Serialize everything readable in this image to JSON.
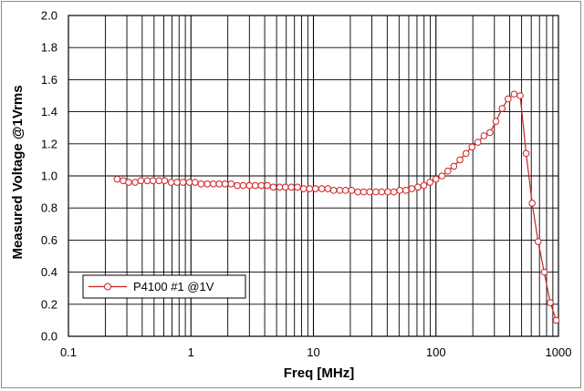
{
  "chart_data": {
    "type": "line",
    "title": "",
    "xlabel": "Freq [MHz]",
    "ylabel": "Measured Voltage @1Vrms",
    "xscale": "log",
    "xlim": [
      0.1,
      1000
    ],
    "ylim": [
      0.0,
      2.0
    ],
    "x_tick_labels": [
      "0.1",
      "1",
      "10",
      "100",
      "1000"
    ],
    "y_tick_labels": [
      "0.0",
      "0.2",
      "0.4",
      "0.6",
      "0.8",
      "1.0",
      "1.2",
      "1.4",
      "1.6",
      "1.8",
      "2.0"
    ],
    "grid": true,
    "legend_position": "bottom-left",
    "series": [
      {
        "name": "P4100 #1 @1V",
        "color": "#cc2222",
        "marker": "circle-open",
        "x": [
          0.25,
          0.28,
          0.31,
          0.35,
          0.39,
          0.44,
          0.49,
          0.55,
          0.61,
          0.69,
          0.77,
          0.86,
          0.97,
          1.08,
          1.21,
          1.36,
          1.52,
          1.7,
          1.9,
          2.13,
          2.39,
          2.67,
          3.0,
          3.35,
          3.75,
          4.2,
          4.7,
          5.3,
          5.9,
          6.6,
          7.4,
          8.3,
          9.3,
          10.4,
          11.7,
          13.1,
          14.6,
          16.4,
          18.3,
          20.5,
          23.0,
          25.7,
          28.8,
          32.3,
          36.1,
          40.5,
          45.3,
          50.7,
          56.8,
          63.6,
          71.2,
          79.7,
          89.3,
          100,
          112,
          125,
          140,
          157,
          176,
          197,
          220,
          247,
          276,
          309,
          347,
          388,
          435,
          487,
          545,
          610,
          683,
          765,
          857,
          960
        ],
        "y": [
          0.98,
          0.97,
          0.96,
          0.96,
          0.97,
          0.97,
          0.97,
          0.97,
          0.97,
          0.96,
          0.96,
          0.96,
          0.96,
          0.96,
          0.95,
          0.95,
          0.95,
          0.95,
          0.95,
          0.95,
          0.94,
          0.94,
          0.94,
          0.94,
          0.94,
          0.94,
          0.93,
          0.93,
          0.93,
          0.93,
          0.93,
          0.92,
          0.92,
          0.92,
          0.92,
          0.92,
          0.91,
          0.91,
          0.91,
          0.91,
          0.9,
          0.9,
          0.9,
          0.9,
          0.9,
          0.9,
          0.9,
          0.91,
          0.91,
          0.92,
          0.93,
          0.94,
          0.96,
          0.98,
          1.0,
          1.03,
          1.06,
          1.1,
          1.14,
          1.18,
          1.21,
          1.25,
          1.27,
          1.34,
          1.42,
          1.48,
          1.51,
          1.5,
          1.14,
          0.83,
          0.59,
          0.4,
          0.21,
          0.1
        ]
      }
    ]
  }
}
